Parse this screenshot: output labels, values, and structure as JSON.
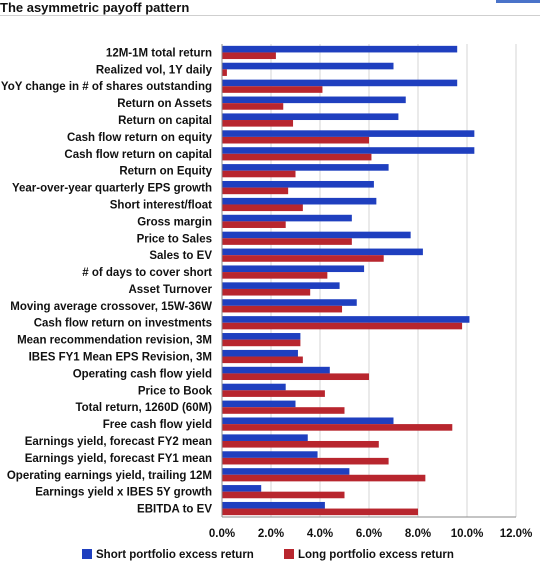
{
  "page": {
    "title": "The asymmetric payoff pattern"
  },
  "chart_data": {
    "type": "bar",
    "orientation": "horizontal",
    "categories": [
      "12M-1M total return",
      "Realized vol, 1Y daily",
      "YoY change in # of shares outstanding",
      "Return on Assets",
      "Return on capital",
      "Cash flow return on equity",
      "Cash flow return on capital",
      "Return on Equity",
      "Year-over-year quarterly EPS growth",
      "Short interest/float",
      "Gross margin",
      "Price to Sales",
      "Sales to EV",
      "# of days to cover short",
      "Asset Turnover",
      "Moving average crossover, 15W-36W",
      "Cash flow return on investments",
      "Mean recommendation revision, 3M",
      "IBES FY1 Mean EPS Revision, 3M",
      "Operating cash flow yield",
      "Price to Book",
      "Total return, 1260D (60M)",
      "Free cash flow yield",
      "Earnings yield, forecast FY2 mean",
      "Earnings yield, forecast FY1 mean",
      "Operating earnings yield, trailing 12M",
      "Earnings yield x IBES 5Y growth",
      "EBITDA to EV"
    ],
    "series": [
      {
        "name": "Short portfolio excess return",
        "color": "#1f3fbf",
        "values": [
          9.6,
          7.0,
          9.6,
          7.5,
          7.2,
          10.3,
          10.3,
          6.8,
          6.2,
          6.3,
          5.3,
          7.7,
          8.2,
          5.8,
          4.8,
          5.5,
          10.1,
          3.2,
          3.1,
          4.4,
          2.6,
          3.0,
          7.0,
          3.5,
          3.9,
          5.2,
          1.6,
          4.2
        ]
      },
      {
        "name": "Long portfolio excess return",
        "color": "#b8262e",
        "values": [
          2.2,
          0.2,
          4.1,
          2.5,
          2.9,
          6.0,
          6.1,
          3.0,
          2.7,
          3.3,
          2.6,
          5.3,
          6.6,
          4.3,
          3.6,
          4.9,
          9.8,
          3.2,
          3.3,
          6.0,
          4.2,
          5.0,
          9.4,
          6.4,
          6.8,
          8.3,
          5.0,
          8.0
        ]
      }
    ],
    "x_ticks": [
      "0.0%",
      "2.0%",
      "4.0%",
      "6.0%",
      "8.0%",
      "10.0%",
      "12.0%"
    ],
    "xlim": [
      0,
      12
    ],
    "grid": "vertical",
    "legend": "bottom",
    "xlabel": "",
    "ylabel": ""
  }
}
